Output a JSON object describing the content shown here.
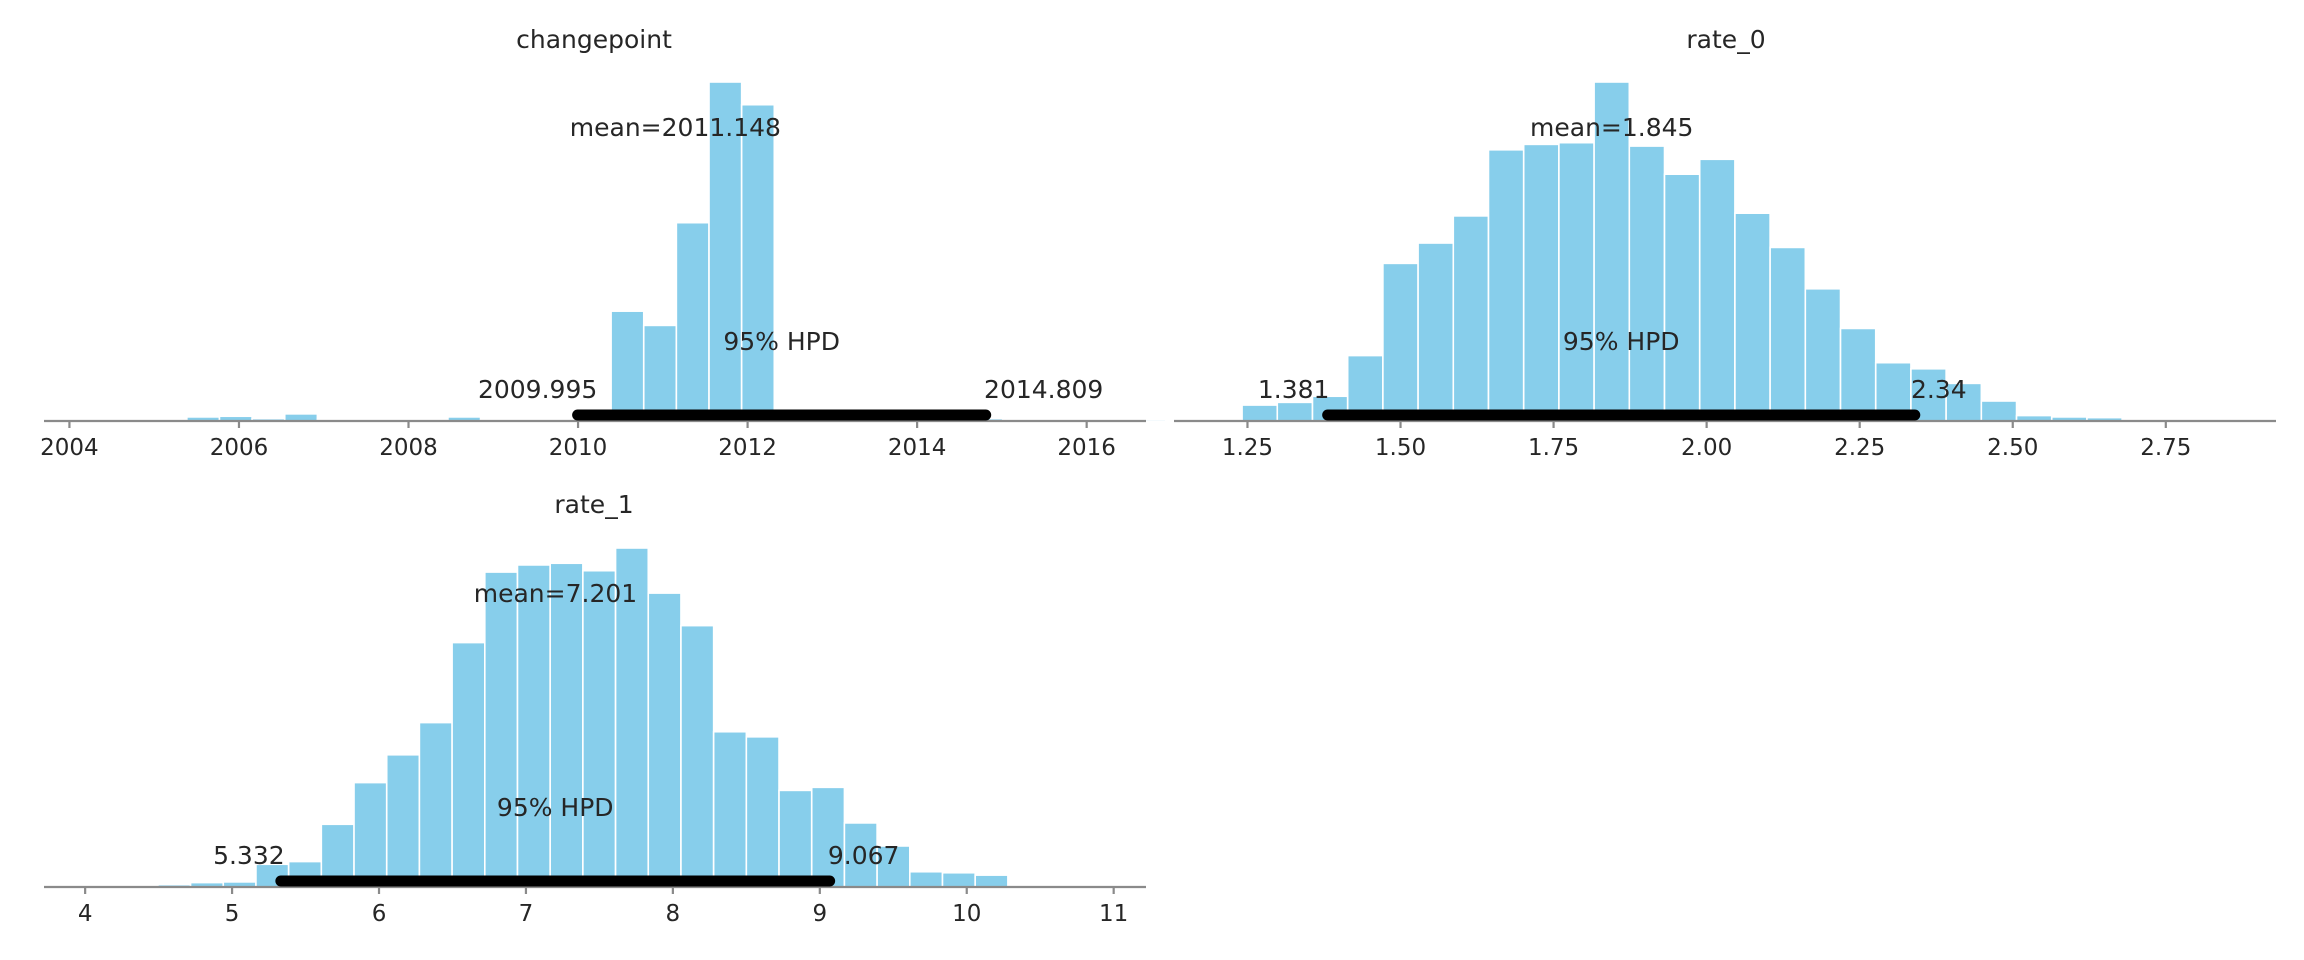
{
  "figure": {
    "bar_color": "#87CEEB",
    "hpd_color": "#000000",
    "axis_color": "#8a8a8a"
  },
  "chart_data": [
    {
      "type": "bar",
      "title": "changepoint",
      "mean_label": "mean=2011.148",
      "hpd_label": "95% HPD",
      "hpd_low_label": "2009.995",
      "hpd_high_label": "2014.809",
      "hpd": [
        2009.995,
        2014.809
      ],
      "xlim": [
        2003.7,
        2016.7
      ],
      "xticks": [
        2004,
        2006,
        2008,
        2010,
        2012,
        2014,
        2016
      ],
      "ylim": [
        0,
        1000
      ],
      "bin_start": 2005.0,
      "bin_width": 0.385,
      "counts": [
        4,
        12,
        14,
        7,
        21,
        5,
        0,
        0,
        2,
        12,
        2,
        0,
        0,
        22,
        324,
        282,
        585,
        1000,
        933,
        30,
        11,
        14,
        11,
        9,
        11,
        7,
        5,
        4,
        3,
        3,
        5,
        4,
        4,
        4,
        4,
        4,
        4,
        4,
        4,
        4,
        4,
        4,
        4,
        4,
        4,
        5,
        10,
        7
      ]
    },
    {
      "type": "bar",
      "title": "rate_0",
      "mean_label": "mean=1.845",
      "hpd_label": "95% HPD",
      "hpd_low_label": "1.381",
      "hpd_high_label": "2.34",
      "hpd": [
        1.381,
        2.34
      ],
      "xlim": [
        1.13,
        2.93
      ],
      "xticks": [
        1.25,
        1.5,
        1.75,
        2.0,
        2.25,
        2.5,
        2.75
      ],
      "xtick_labels": [
        "1.25",
        "1.50",
        "1.75",
        "2.00",
        "2.25",
        "2.50",
        "2.75"
      ],
      "ylim": [
        0,
        1000
      ],
      "bin_start": 1.2412,
      "bin_width": 0.0575,
      "counts": [
        47,
        55,
        73,
        193,
        465,
        525,
        605,
        800,
        816,
        821,
        1000,
        811,
        728,
        772,
        613,
        512,
        390,
        273,
        172,
        154,
        111,
        59,
        16,
        12,
        10,
        1,
        2,
        1,
        1,
        1,
        1,
        2
      ]
    },
    {
      "type": "bar",
      "title": "rate_1",
      "mean_label": "mean=7.201",
      "hpd_label": "95% HPD",
      "hpd_low_label": "5.332",
      "hpd_high_label": "9.067",
      "hpd": [
        5.332,
        9.067
      ],
      "xlim": [
        3.72,
        11.22
      ],
      "xticks": [
        4,
        5,
        6,
        7,
        8,
        9,
        10,
        11
      ],
      "ylim": [
        0,
        1000
      ],
      "bin_start": 4.05,
      "bin_width": 0.2225,
      "counts": [
        4,
        4,
        7,
        13,
        15,
        67,
        75,
        185,
        308,
        390,
        485,
        721,
        929,
        950,
        955,
        933,
        1000,
        867,
        771,
        458,
        443,
        285,
        294,
        189,
        121,
        45,
        42,
        35
      ]
    }
  ]
}
